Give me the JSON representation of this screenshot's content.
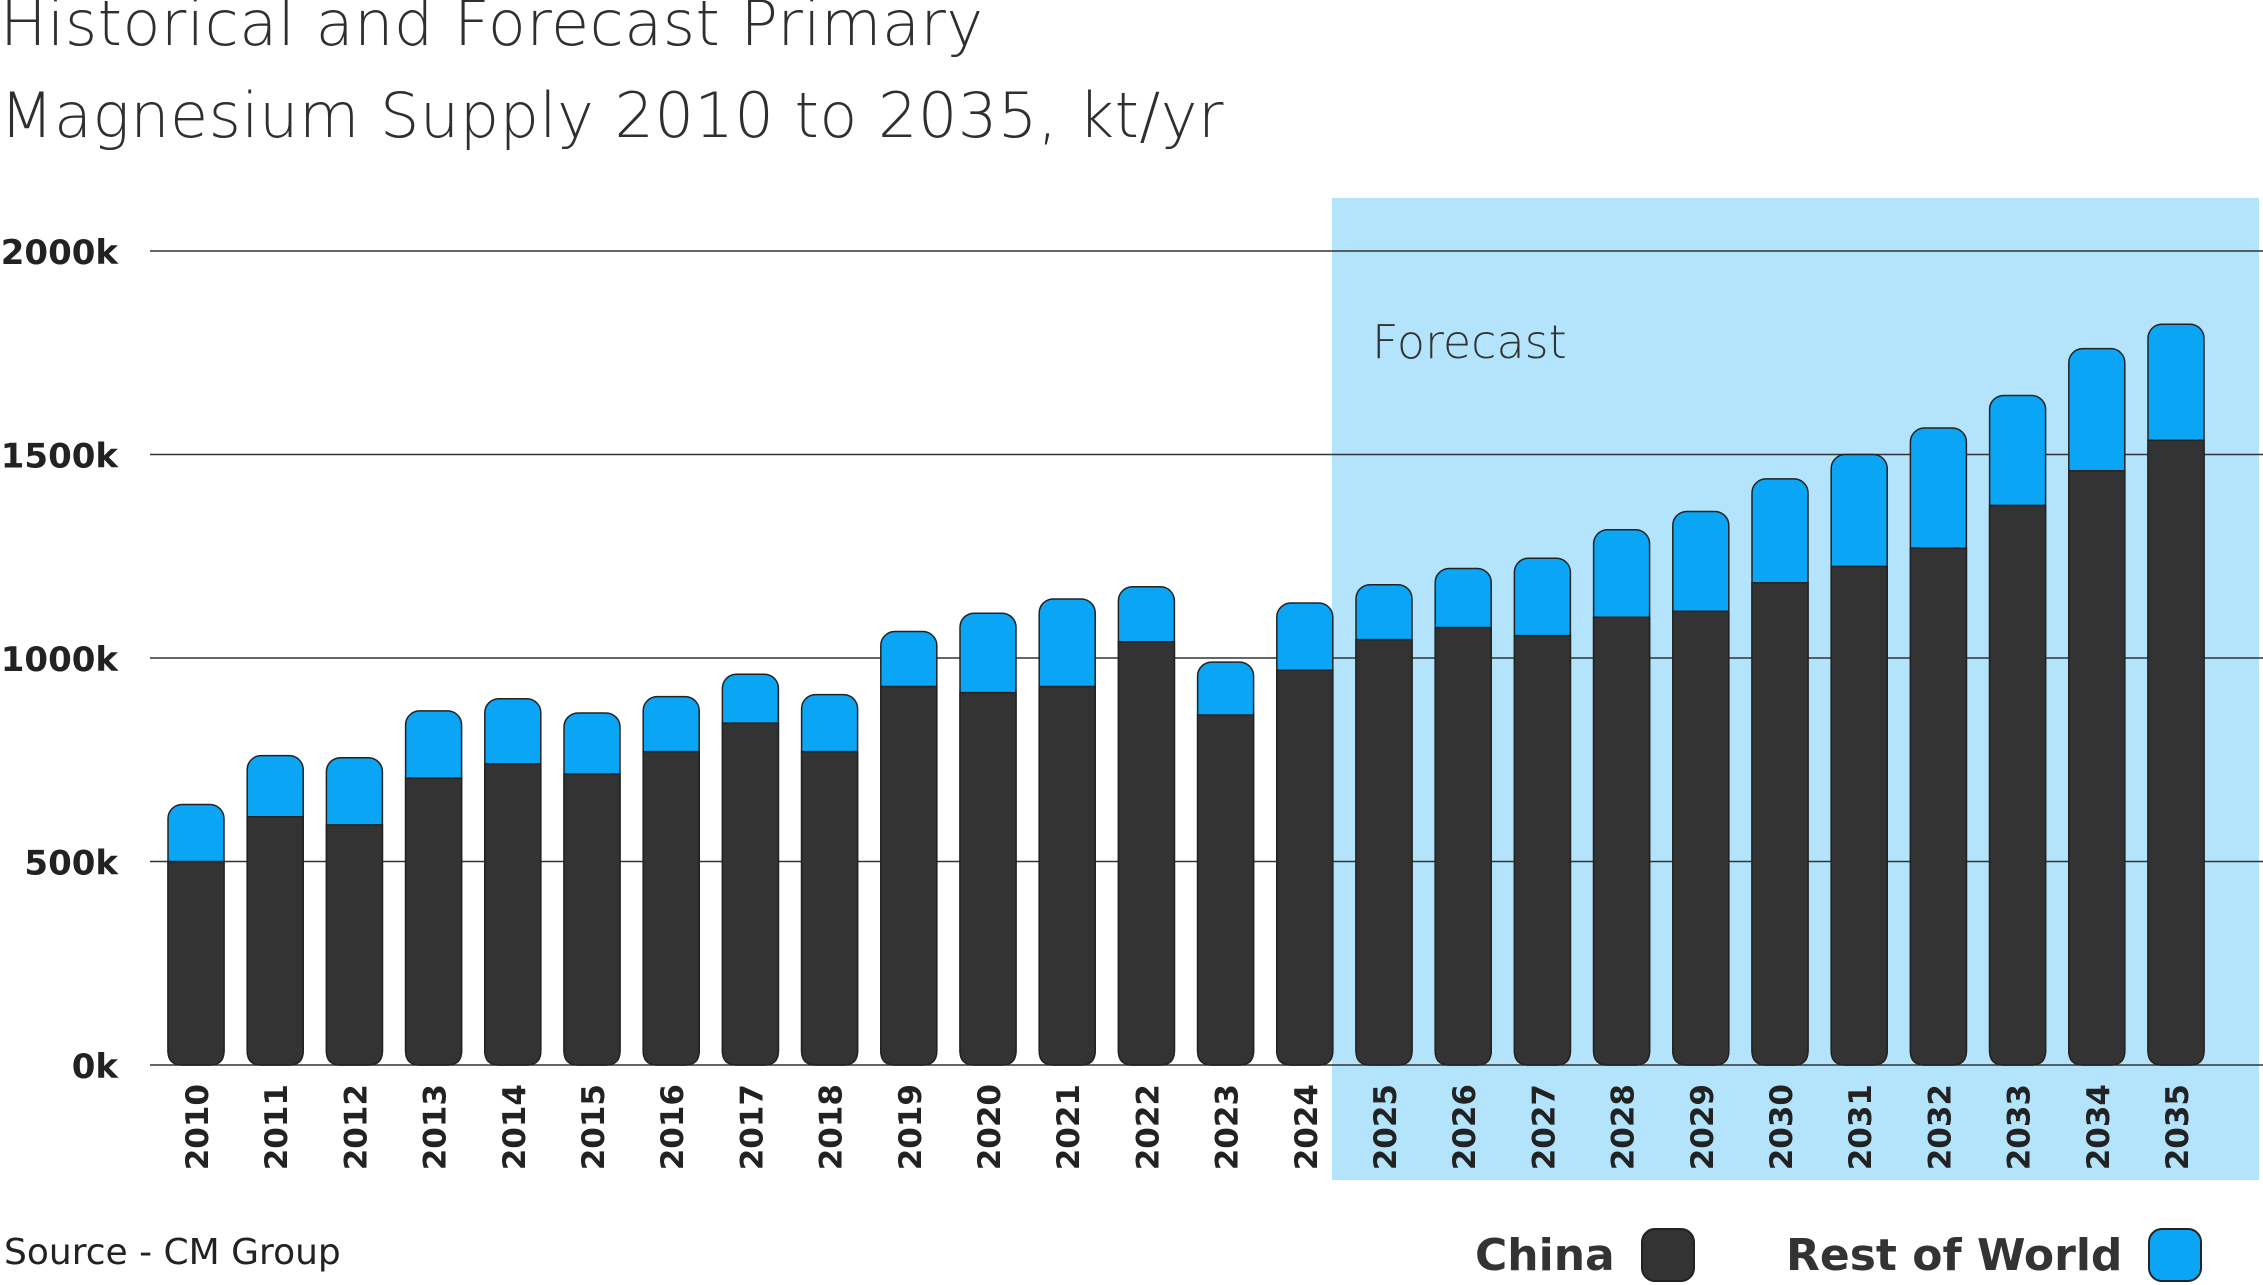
{
  "page": {
    "title_line1": "Historical and Forecast Primary",
    "title_line2": "Magnesium Supply 2010 to 2035, kt/yr",
    "source": "Source - CM Group",
    "forecast_label": "Forecast"
  },
  "colors": {
    "china": "#333333",
    "rest_of_world": "#0aa5f5",
    "forecast_band": "#b3e4fb",
    "grid": "#333333",
    "text": "#222222"
  },
  "chart_data": {
    "type": "bar",
    "stacked": true,
    "title": "Historical and Forecast Primary Magnesium Supply 2010 to 2035, kt/yr",
    "xlabel": "",
    "ylabel": "",
    "ylim": [
      0,
      2000
    ],
    "yticks": [
      0,
      500,
      1000,
      1500,
      2000
    ],
    "ytick_labels": [
      "0k",
      "500k",
      "1000k",
      "1500k",
      "2000k"
    ],
    "forecast_start": "2025",
    "categories": [
      "2010",
      "2011",
      "2012",
      "2013",
      "2014",
      "2015",
      "2016",
      "2017",
      "2018",
      "2019",
      "2020",
      "2021",
      "2022",
      "2023",
      "2024",
      "2025",
      "2026",
      "2027",
      "2028",
      "2029",
      "2030",
      "2031",
      "2032",
      "2033",
      "2034",
      "2035"
    ],
    "series": [
      {
        "name": "China",
        "values": [
          500,
          610,
          590,
          705,
          740,
          715,
          770,
          840,
          770,
          930,
          915,
          930,
          1040,
          860,
          970,
          1045,
          1075,
          1055,
          1100,
          1115,
          1185,
          1225,
          1270,
          1375,
          1460,
          1535
        ]
      },
      {
        "name": "Rest of World",
        "values": [
          140,
          150,
          165,
          165,
          160,
          150,
          135,
          120,
          140,
          135,
          195,
          215,
          135,
          130,
          165,
          135,
          145,
          190,
          215,
          245,
          255,
          275,
          295,
          270,
          300,
          285
        ]
      }
    ],
    "legend": [
      {
        "label": "China"
      },
      {
        "label": "Rest of World"
      }
    ],
    "legend_position": "bottom-right"
  }
}
